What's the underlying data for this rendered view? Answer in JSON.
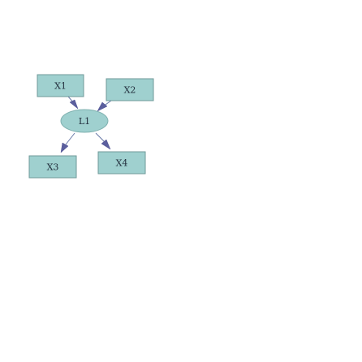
{
  "diagram": {
    "latent": {
      "label": "L1"
    },
    "indicators": [
      {
        "label": "X1"
      },
      {
        "label": "X2"
      },
      {
        "label": "X3"
      },
      {
        "label": "X4"
      }
    ],
    "edges": [
      {
        "from": "X1",
        "to": "L1"
      },
      {
        "from": "X2",
        "to": "L1"
      },
      {
        "from": "L1",
        "to": "X3"
      },
      {
        "from": "L1",
        "to": "X4"
      }
    ],
    "colors": {
      "node_fill": "#9fd0cf",
      "node_stroke": "#6f9a99",
      "arrow": "#5b5f9e",
      "label": "#1f2b3a"
    }
  }
}
